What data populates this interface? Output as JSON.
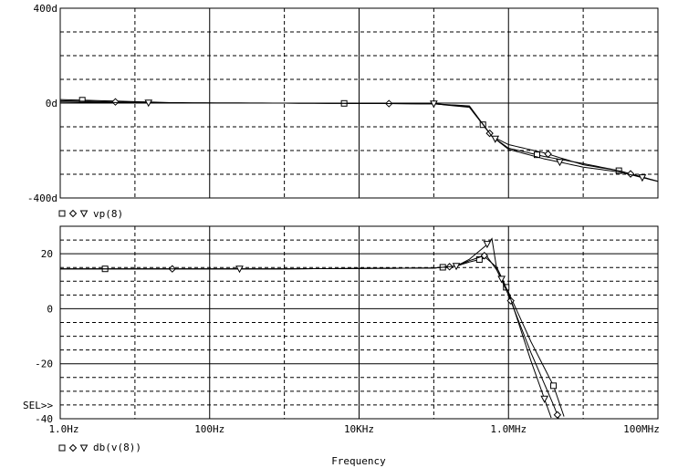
{
  "chart_data": [
    {
      "type": "line",
      "panel": "phase",
      "x_scale": "log",
      "xlim": [
        1,
        100000000
      ],
      "ylim": [
        -400,
        400
      ],
      "y_ticks": [
        {
          "value": 400,
          "label": "400d"
        },
        {
          "value": 0,
          "label": "0d"
        },
        {
          "value": -400,
          "label": "-400d"
        }
      ],
      "legend": {
        "symbols": [
          "□",
          "◇",
          "▽"
        ],
        "label": "vp(8)"
      },
      "grid": true,
      "series": [
        {
          "marker": "square",
          "x": [
            1,
            30,
            1000,
            100000,
            300000,
            600000,
            1000000,
            3000000,
            10000000,
            30000000,
            100000000
          ],
          "y": [
            15,
            2,
            0,
            -3,
            -18,
            -140,
            -190,
            -225,
            -255,
            -285,
            -330
          ]
        },
        {
          "marker": "diamond",
          "x": [
            1,
            30,
            1000,
            100000,
            300000,
            600000,
            1000000,
            3000000,
            10000000,
            30000000,
            100000000
          ],
          "y": [
            10,
            0,
            0,
            -3,
            -15,
            -140,
            -175,
            -210,
            -260,
            -285,
            -330
          ]
        },
        {
          "marker": "triangle",
          "x": [
            1,
            30,
            1000,
            100000,
            300000,
            600000,
            1000000,
            3000000,
            10000000,
            30000000,
            100000000
          ],
          "y": [
            5,
            0,
            0,
            -3,
            -12,
            -140,
            -195,
            -235,
            -270,
            -290,
            -330
          ]
        }
      ]
    },
    {
      "type": "line",
      "panel": "magnitude",
      "x_scale": "log",
      "xlim": [
        1,
        100000000
      ],
      "ylim": [
        -40,
        30
      ],
      "y_ticks": [
        {
          "value": 20,
          "label": "20"
        },
        {
          "value": 0,
          "label": "0"
        },
        {
          "value": -20,
          "label": "-20"
        },
        {
          "value": -40,
          "label": "-40"
        }
      ],
      "x_ticks": [
        {
          "value": 1,
          "label": "1.0Hz"
        },
        {
          "value": 100,
          "label": "100Hz"
        },
        {
          "value": 10000,
          "label": "10KHz"
        },
        {
          "value": 1000000,
          "label": "1.0MHz"
        },
        {
          "value": 100000000,
          "label": "100MHz"
        }
      ],
      "xlabel": "Frequency",
      "legend": {
        "symbols": [
          "□",
          "◇",
          "▽"
        ],
        "label": "db(v(8))"
      },
      "sel_marker": "SEL>>",
      "grid": true,
      "series": [
        {
          "marker": "square",
          "x": [
            1,
            1000,
            100000,
            200000,
            300000,
            500000,
            700000,
            1000000,
            2000000,
            4000000,
            6000000
          ],
          "y": [
            14.5,
            14.5,
            14.8,
            15.5,
            17,
            18.5,
            15,
            6,
            -12,
            -28,
            -42
          ]
        },
        {
          "marker": "diamond",
          "x": [
            1,
            1000,
            100000,
            200000,
            300000,
            500000,
            700000,
            1000000,
            2000000,
            4000000,
            6000000
          ],
          "y": [
            14.5,
            14.5,
            14.8,
            15.5,
            17.5,
            19.5,
            14,
            5,
            -16,
            -35,
            -47
          ]
        },
        {
          "marker": "triangle",
          "x": [
            1,
            1000,
            100000,
            200000,
            300000,
            500000,
            600000,
            700000,
            1000000,
            2000000,
            4000000
          ],
          "y": [
            14.5,
            14.5,
            14.8,
            15.5,
            18,
            23,
            25.5,
            14,
            6,
            -19,
            -42
          ]
        }
      ]
    }
  ]
}
